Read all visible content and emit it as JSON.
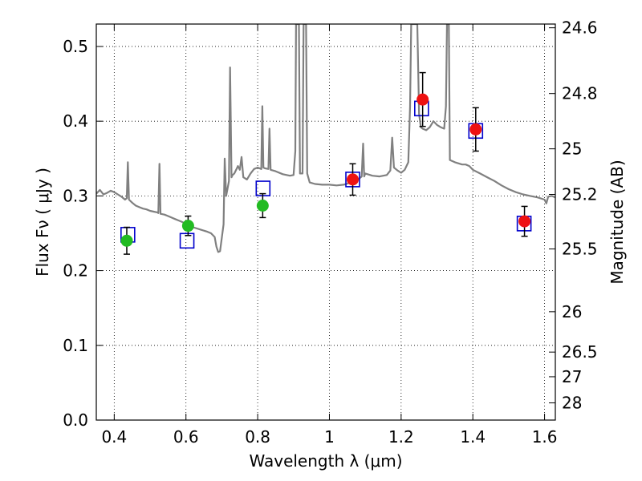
{
  "chart_data": {
    "type": "scatter",
    "xlabel": "Wavelength  λ (μm)",
    "ylabel": "Flux  Fν  ( μJy )",
    "ylabel_right": "Magnitude (AB)",
    "xlim": [
      0.35,
      1.63
    ],
    "ylim": [
      0.0,
      0.53
    ],
    "grid": true,
    "x_ticks": [
      {
        "value": 0.4,
        "label": "0.4"
      },
      {
        "value": 0.6,
        "label": "0.6"
      },
      {
        "value": 0.8,
        "label": "0.8"
      },
      {
        "value": 1.0,
        "label": "1"
      },
      {
        "value": 1.2,
        "label": "1.2"
      },
      {
        "value": 1.4,
        "label": "1.4"
      },
      {
        "value": 1.6,
        "label": "1.6"
      }
    ],
    "y_ticks": [
      {
        "value": 0.0,
        "label": "0.0"
      },
      {
        "value": 0.1,
        "label": "0.1"
      },
      {
        "value": 0.2,
        "label": "0.2"
      },
      {
        "value": 0.3,
        "label": "0.3"
      },
      {
        "value": 0.4,
        "label": "0.4"
      },
      {
        "value": 0.5,
        "label": "0.5"
      }
    ],
    "right_ticks": [
      {
        "flux": 0.525,
        "label": "24.6"
      },
      {
        "flux": 0.437,
        "label": "24.8"
      },
      {
        "flux": 0.363,
        "label": "25"
      },
      {
        "flux": 0.302,
        "label": "25.2"
      },
      {
        "flux": 0.229,
        "label": "25.5"
      },
      {
        "flux": 0.145,
        "label": "26"
      },
      {
        "flux": 0.091,
        "label": "26.5"
      },
      {
        "flux": 0.058,
        "label": "27"
      },
      {
        "flux": 0.023,
        "label": "28"
      }
    ],
    "colors": {
      "spectrum": "#808080",
      "model_box": "#0000cc",
      "optical_points": "#22bb22",
      "nir_points": "#ee1111",
      "errorbar": "#000000"
    },
    "spectrum": [
      [
        0.35,
        0.303
      ],
      [
        0.36,
        0.308
      ],
      [
        0.37,
        0.302
      ],
      [
        0.38,
        0.304
      ],
      [
        0.39,
        0.307
      ],
      [
        0.4,
        0.305
      ],
      [
        0.41,
        0.302
      ],
      [
        0.42,
        0.299
      ],
      [
        0.43,
        0.295
      ],
      [
        0.435,
        0.297
      ],
      [
        0.438,
        0.345
      ],
      [
        0.441,
        0.295
      ],
      [
        0.45,
        0.291
      ],
      [
        0.46,
        0.287
      ],
      [
        0.47,
        0.285
      ],
      [
        0.48,
        0.283
      ],
      [
        0.49,
        0.282
      ],
      [
        0.5,
        0.28
      ],
      [
        0.51,
        0.279
      ],
      [
        0.52,
        0.278
      ],
      [
        0.523,
        0.277
      ],
      [
        0.526,
        0.343
      ],
      [
        0.529,
        0.276
      ],
      [
        0.54,
        0.275
      ],
      [
        0.55,
        0.273
      ],
      [
        0.56,
        0.271
      ],
      [
        0.57,
        0.269
      ],
      [
        0.58,
        0.267
      ],
      [
        0.59,
        0.265
      ],
      [
        0.6,
        0.262
      ],
      [
        0.62,
        0.258
      ],
      [
        0.64,
        0.255
      ],
      [
        0.66,
        0.252
      ],
      [
        0.67,
        0.25
      ],
      [
        0.68,
        0.245
      ],
      [
        0.685,
        0.232
      ],
      [
        0.69,
        0.225
      ],
      [
        0.695,
        0.226
      ],
      [
        0.7,
        0.244
      ],
      [
        0.705,
        0.262
      ],
      [
        0.708,
        0.35
      ],
      [
        0.712,
        0.3
      ],
      [
        0.716,
        0.31
      ],
      [
        0.72,
        0.32
      ],
      [
        0.723,
        0.472
      ],
      [
        0.727,
        0.325
      ],
      [
        0.73,
        0.328
      ],
      [
        0.735,
        0.33
      ],
      [
        0.74,
        0.335
      ],
      [
        0.745,
        0.34
      ],
      [
        0.75,
        0.335
      ],
      [
        0.755,
        0.352
      ],
      [
        0.76,
        0.325
      ],
      [
        0.77,
        0.322
      ],
      [
        0.78,
        0.33
      ],
      [
        0.79,
        0.336
      ],
      [
        0.8,
        0.338
      ],
      [
        0.81,
        0.336
      ],
      [
        0.813,
        0.42
      ],
      [
        0.816,
        0.338
      ],
      [
        0.82,
        0.337
      ],
      [
        0.83,
        0.336
      ],
      [
        0.833,
        0.39
      ],
      [
        0.836,
        0.335
      ],
      [
        0.85,
        0.333
      ],
      [
        0.87,
        0.329
      ],
      [
        0.89,
        0.327
      ],
      [
        0.9,
        0.328
      ],
      [
        0.905,
        0.36
      ],
      [
        0.907,
        0.53
      ],
      [
        0.915,
        0.53
      ],
      [
        0.918,
        0.33
      ],
      [
        0.925,
        0.33
      ],
      [
        0.928,
        0.53
      ],
      [
        0.935,
        0.53
      ],
      [
        0.938,
        0.33
      ],
      [
        0.945,
        0.318
      ],
      [
        0.96,
        0.316
      ],
      [
        0.98,
        0.315
      ],
      [
        1.0,
        0.315
      ],
      [
        1.02,
        0.314
      ],
      [
        1.04,
        0.315
      ],
      [
        1.06,
        0.318
      ],
      [
        1.08,
        0.322
      ],
      [
        1.09,
        0.326
      ],
      [
        1.094,
        0.37
      ],
      [
        1.097,
        0.326
      ],
      [
        1.1,
        0.33
      ],
      [
        1.12,
        0.327
      ],
      [
        1.14,
        0.326
      ],
      [
        1.16,
        0.328
      ],
      [
        1.17,
        0.334
      ],
      [
        1.175,
        0.378
      ],
      [
        1.18,
        0.338
      ],
      [
        1.19,
        0.334
      ],
      [
        1.2,
        0.331
      ],
      [
        1.21,
        0.335
      ],
      [
        1.22,
        0.345
      ],
      [
        1.225,
        0.42
      ],
      [
        1.228,
        0.53
      ],
      [
        1.245,
        0.53
      ],
      [
        1.25,
        0.41
      ],
      [
        1.255,
        0.392
      ],
      [
        1.26,
        0.39
      ],
      [
        1.27,
        0.388
      ],
      [
        1.28,
        0.392
      ],
      [
        1.29,
        0.4
      ],
      [
        1.3,
        0.395
      ],
      [
        1.31,
        0.392
      ],
      [
        1.32,
        0.39
      ],
      [
        1.325,
        0.42
      ],
      [
        1.328,
        0.53
      ],
      [
        1.333,
        0.53
      ],
      [
        1.336,
        0.348
      ],
      [
        1.35,
        0.345
      ],
      [
        1.37,
        0.342
      ],
      [
        1.38,
        0.342
      ],
      [
        1.39,
        0.34
      ],
      [
        1.4,
        0.335
      ],
      [
        1.42,
        0.33
      ],
      [
        1.44,
        0.325
      ],
      [
        1.46,
        0.32
      ],
      [
        1.48,
        0.314
      ],
      [
        1.5,
        0.309
      ],
      [
        1.52,
        0.305
      ],
      [
        1.54,
        0.302
      ],
      [
        1.56,
        0.3
      ],
      [
        1.58,
        0.298
      ],
      [
        1.6,
        0.295
      ],
      [
        1.605,
        0.29
      ],
      [
        1.61,
        0.299
      ],
      [
        1.62,
        0.3
      ],
      [
        1.63,
        0.298
      ]
    ],
    "model_points": [
      {
        "x": 0.438,
        "y": 0.248
      },
      {
        "x": 0.603,
        "y": 0.24
      },
      {
        "x": 0.815,
        "y": 0.31
      },
      {
        "x": 1.065,
        "y": 0.322
      },
      {
        "x": 1.257,
        "y": 0.417
      },
      {
        "x": 1.408,
        "y": 0.387
      },
      {
        "x": 1.543,
        "y": 0.263
      }
    ],
    "optical_points": [
      {
        "x": 0.435,
        "y": 0.24,
        "err": 0.018
      },
      {
        "x": 0.606,
        "y": 0.26,
        "err": 0.013
      },
      {
        "x": 0.814,
        "y": 0.287,
        "err": 0.016
      }
    ],
    "nir_points": [
      {
        "x": 1.065,
        "y": 0.322,
        "err": 0.021
      },
      {
        "x": 1.26,
        "y": 0.429,
        "err": 0.036
      },
      {
        "x": 1.408,
        "y": 0.389,
        "err": 0.029
      },
      {
        "x": 1.544,
        "y": 0.266,
        "err": 0.02
      }
    ]
  }
}
